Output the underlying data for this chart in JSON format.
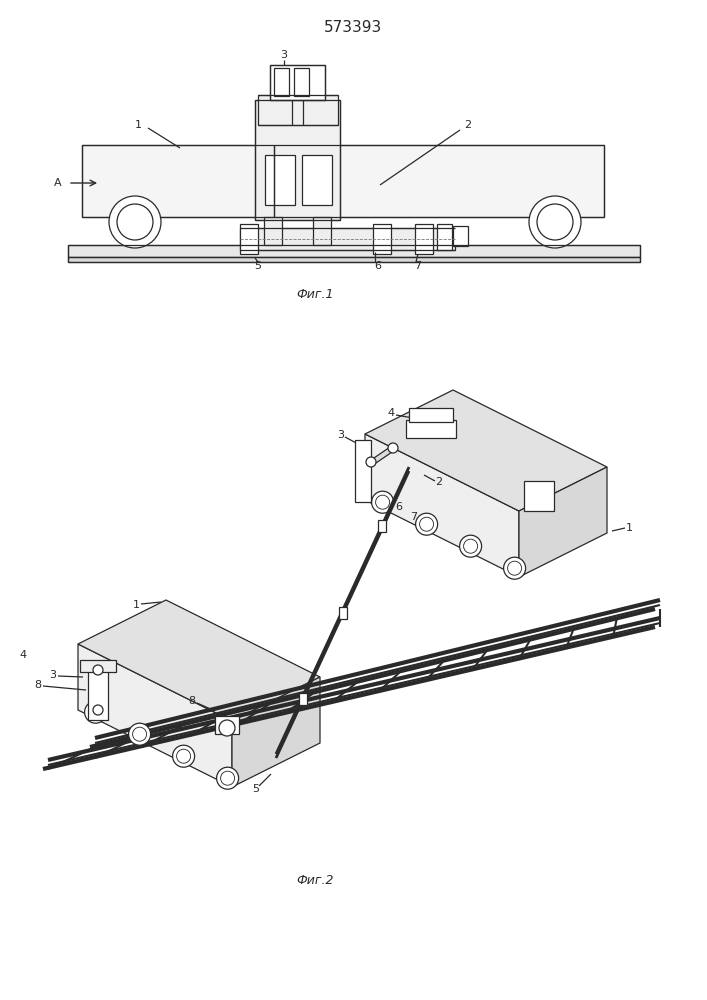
{
  "title": "573393",
  "fig1_caption": "Фиг.1",
  "fig2_caption": "Фиг.2",
  "bg": "#ffffff",
  "lc": "#2a2a2a",
  "lw": 0.9
}
